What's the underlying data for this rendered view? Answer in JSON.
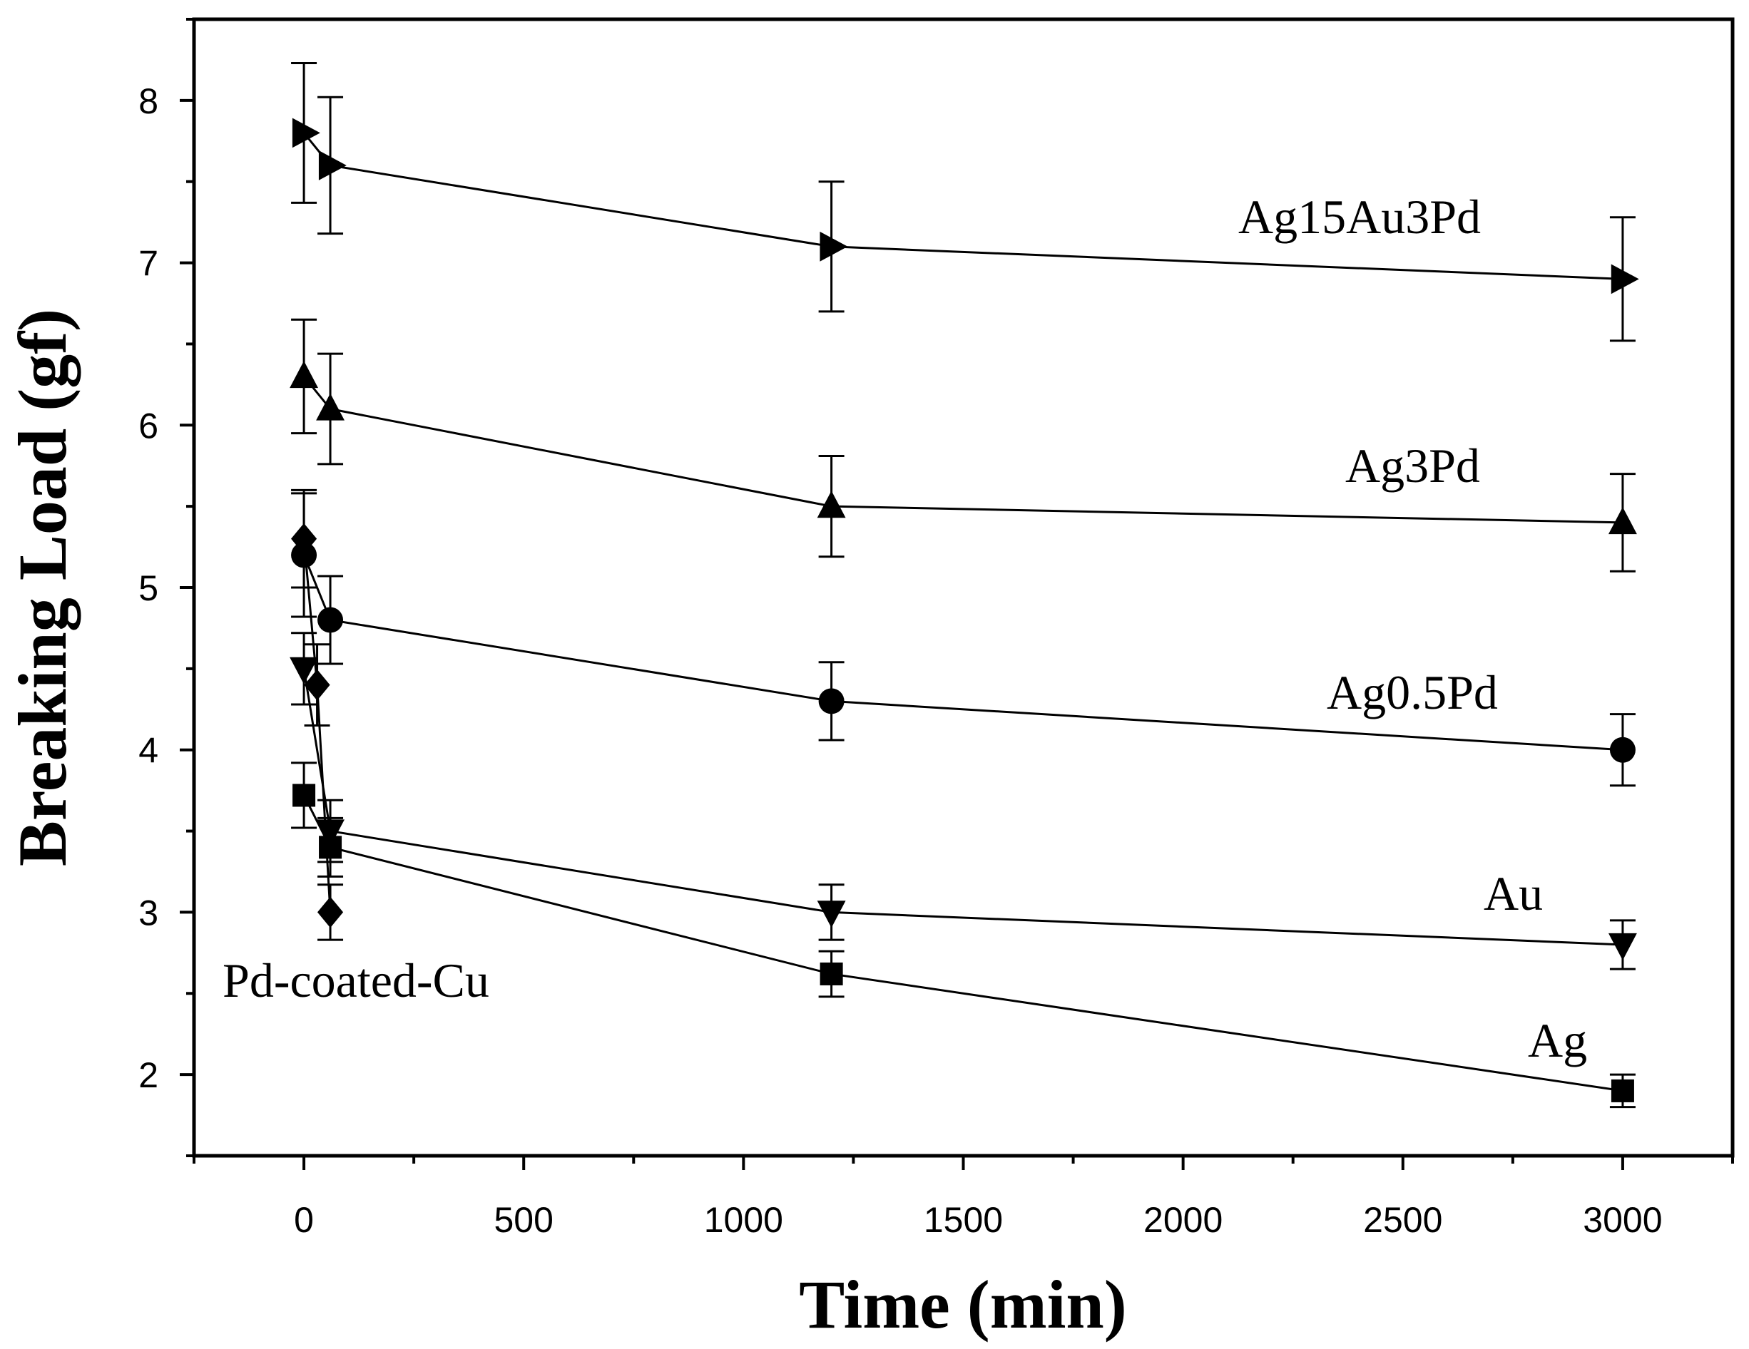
{
  "chart_data": {
    "type": "scatter",
    "title": "",
    "xlabel": "Time (min)",
    "ylabel": "Breaking Load (gf)",
    "xlim": [
      -250,
      3250
    ],
    "ylim": [
      1.5,
      8.5
    ],
    "xticks": [
      0,
      500,
      1000,
      1500,
      2000,
      2500,
      3000
    ],
    "yticks": [
      2,
      3,
      4,
      5,
      6,
      7,
      8
    ],
    "grid": false,
    "legend": "none (series labeled inline)",
    "series": [
      {
        "name": "Ag15Au3Pd",
        "marker": "triangle-right",
        "x": [
          0,
          60,
          1200,
          3000
        ],
        "y": [
          7.8,
          7.6,
          7.1,
          6.9
        ],
        "err": [
          0.43,
          0.42,
          0.4,
          0.38
        ]
      },
      {
        "name": "Ag3Pd",
        "marker": "triangle-up",
        "x": [
          0,
          60,
          1200,
          3000
        ],
        "y": [
          6.3,
          6.1,
          5.5,
          5.4
        ],
        "err": [
          0.35,
          0.34,
          0.31,
          0.3
        ]
      },
      {
        "name": "Ag0.5Pd",
        "marker": "circle",
        "x": [
          0,
          60,
          1200,
          3000
        ],
        "y": [
          5.2,
          4.8,
          4.3,
          4.0
        ],
        "err": [
          0.38,
          0.27,
          0.24,
          0.22
        ]
      },
      {
        "name": "Au",
        "marker": "triangle-down",
        "x": [
          0,
          60,
          1200,
          3000
        ],
        "y": [
          4.5,
          3.5,
          3.0,
          2.8
        ],
        "err": [
          0.22,
          0.19,
          0.17,
          0.15
        ]
      },
      {
        "name": "Ag",
        "marker": "square",
        "x": [
          0,
          60,
          1200,
          3000
        ],
        "y": [
          3.72,
          3.4,
          2.62,
          1.9
        ],
        "err": [
          0.2,
          0.18,
          0.14,
          0.1
        ]
      },
      {
        "name": "Pd-coated-Cu",
        "marker": "diamond",
        "x": [
          0,
          30,
          60
        ],
        "y": [
          5.3,
          4.4,
          3.0
        ],
        "err": [
          0.3,
          0.25,
          0.17
        ]
      }
    ]
  }
}
